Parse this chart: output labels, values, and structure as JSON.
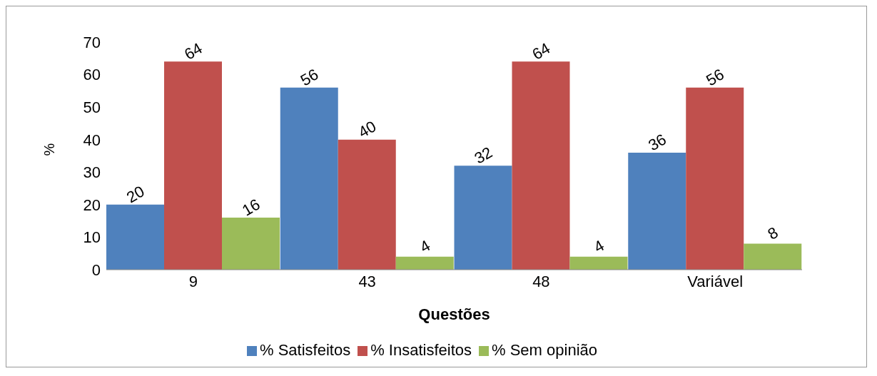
{
  "chart_data": {
    "type": "bar",
    "categories": [
      "9",
      "43",
      "48",
      "Variável"
    ],
    "series": [
      {
        "name": "% Satisfeitos",
        "color": "#4f81bd",
        "values": [
          20,
          56,
          32,
          36
        ]
      },
      {
        "name": "% Insatisfeitos",
        "color": "#c0504d",
        "values": [
          64,
          40,
          64,
          56
        ]
      },
      {
        "name": "% Sem opinião",
        "color": "#9bbb59",
        "values": [
          16,
          4,
          4,
          8
        ]
      }
    ],
    "ylim": [
      0,
      70
    ],
    "yticks": [
      0,
      10,
      20,
      30,
      40,
      50,
      60,
      70
    ],
    "xlabel": "Questões",
    "ylabel": "%",
    "legend": "bottom",
    "data_labels": true
  }
}
